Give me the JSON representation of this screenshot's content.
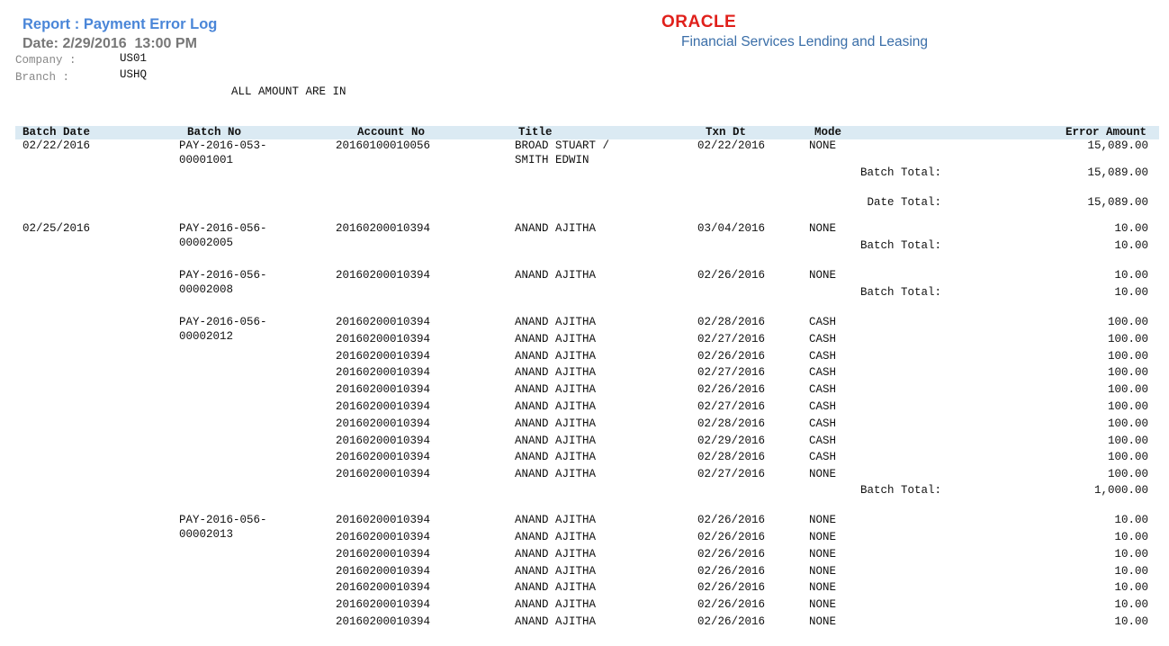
{
  "report": {
    "title": "Report : Payment Error Log",
    "date": "Date: 2/29/2016  13:00 PM",
    "company_label": "Company :",
    "company_value": "US01",
    "branch_label": "Branch :",
    "branch_value": "USHQ",
    "amount_note": "ALL AMOUNT ARE IN"
  },
  "logo": {
    "brand": "ORACLE",
    "product": "Financial Services Lending and Leasing"
  },
  "columns": [
    "Batch Date",
    "Batch No",
    "Account No",
    "Title",
    "Txn Dt",
    "Mode",
    "Error Amount"
  ],
  "rows": [
    {
      "type": "detail",
      "batch_date": "02/22/2016",
      "batch_no": "PAY-2016-053-\n00001001",
      "account": "20160100010056",
      "title": "BROAD STUART /\nSMITH EDWIN",
      "txn_dt": "02/22/2016",
      "mode": "NONE",
      "amount": "15,089.00"
    },
    {
      "type": "total",
      "label": "Batch Total:",
      "amount": "15,089.00"
    },
    {
      "type": "total",
      "label": "Date Total:",
      "amount": "15,089.00"
    },
    {
      "type": "detail",
      "batch_date": "02/25/2016",
      "batch_no": "PAY-2016-056-\n00002005",
      "account": "20160200010394",
      "title": "ANAND AJITHA",
      "txn_dt": "03/04/2016",
      "mode": "NONE",
      "amount": "10.00"
    },
    {
      "type": "total",
      "label": "Batch Total:",
      "amount": "10.00"
    },
    {
      "type": "detail",
      "batch_no": "PAY-2016-056-\n00002008",
      "account": "20160200010394",
      "title": "ANAND AJITHA",
      "txn_dt": "02/26/2016",
      "mode": "NONE",
      "amount": "10.00"
    },
    {
      "type": "total",
      "label": "Batch Total:",
      "amount": "10.00"
    },
    {
      "type": "detail",
      "batch_no": "PAY-2016-056-\n00002012",
      "account": "20160200010394",
      "title": "ANAND AJITHA",
      "txn_dt": "02/28/2016",
      "mode": "CASH",
      "amount": "100.00"
    },
    {
      "type": "detail",
      "account": "20160200010394",
      "title": "ANAND AJITHA",
      "txn_dt": "02/27/2016",
      "mode": "CASH",
      "amount": "100.00"
    },
    {
      "type": "detail",
      "account": "20160200010394",
      "title": "ANAND AJITHA",
      "txn_dt": "02/26/2016",
      "mode": "CASH",
      "amount": "100.00"
    },
    {
      "type": "detail",
      "account": "20160200010394",
      "title": "ANAND AJITHA",
      "txn_dt": "02/27/2016",
      "mode": "CASH",
      "amount": "100.00"
    },
    {
      "type": "detail",
      "account": "20160200010394",
      "title": "ANAND AJITHA",
      "txn_dt": "02/26/2016",
      "mode": "CASH",
      "amount": "100.00"
    },
    {
      "type": "detail",
      "account": "20160200010394",
      "title": "ANAND AJITHA",
      "txn_dt": "02/27/2016",
      "mode": "CASH",
      "amount": "100.00"
    },
    {
      "type": "detail",
      "account": "20160200010394",
      "title": "ANAND AJITHA",
      "txn_dt": "02/28/2016",
      "mode": "CASH",
      "amount": "100.00"
    },
    {
      "type": "detail",
      "account": "20160200010394",
      "title": "ANAND AJITHA",
      "txn_dt": "02/29/2016",
      "mode": "CASH",
      "amount": "100.00"
    },
    {
      "type": "detail",
      "account": "20160200010394",
      "title": "ANAND AJITHA",
      "txn_dt": "02/28/2016",
      "mode": "CASH",
      "amount": "100.00"
    },
    {
      "type": "detail",
      "account": "20160200010394",
      "title": "ANAND AJITHA",
      "txn_dt": "02/27/2016",
      "mode": "NONE",
      "amount": "100.00"
    },
    {
      "type": "total",
      "label": "Batch Total:",
      "amount": "1,000.00"
    },
    {
      "type": "detail",
      "batch_no": "PAY-2016-056-\n00002013",
      "account": "20160200010394",
      "title": "ANAND AJITHA",
      "txn_dt": "02/26/2016",
      "mode": "NONE",
      "amount": "10.00"
    },
    {
      "type": "detail",
      "account": "20160200010394",
      "title": "ANAND AJITHA",
      "txn_dt": "02/26/2016",
      "mode": "NONE",
      "amount": "10.00"
    },
    {
      "type": "detail",
      "account": "20160200010394",
      "title": "ANAND AJITHA",
      "txn_dt": "02/26/2016",
      "mode": "NONE",
      "amount": "10.00"
    },
    {
      "type": "detail",
      "account": "20160200010394",
      "title": "ANAND AJITHA",
      "txn_dt": "02/26/2016",
      "mode": "NONE",
      "amount": "10.00"
    },
    {
      "type": "detail",
      "account": "20160200010394",
      "title": "ANAND AJITHA",
      "txn_dt": "02/26/2016",
      "mode": "NONE",
      "amount": "10.00"
    },
    {
      "type": "detail",
      "account": "20160200010394",
      "title": "ANAND AJITHA",
      "txn_dt": "02/26/2016",
      "mode": "NONE",
      "amount": "10.00"
    },
    {
      "type": "detail",
      "account": "20160200010394",
      "title": "ANAND AJITHA",
      "txn_dt": "02/26/2016",
      "mode": "NONE",
      "amount": "10.00"
    }
  ]
}
